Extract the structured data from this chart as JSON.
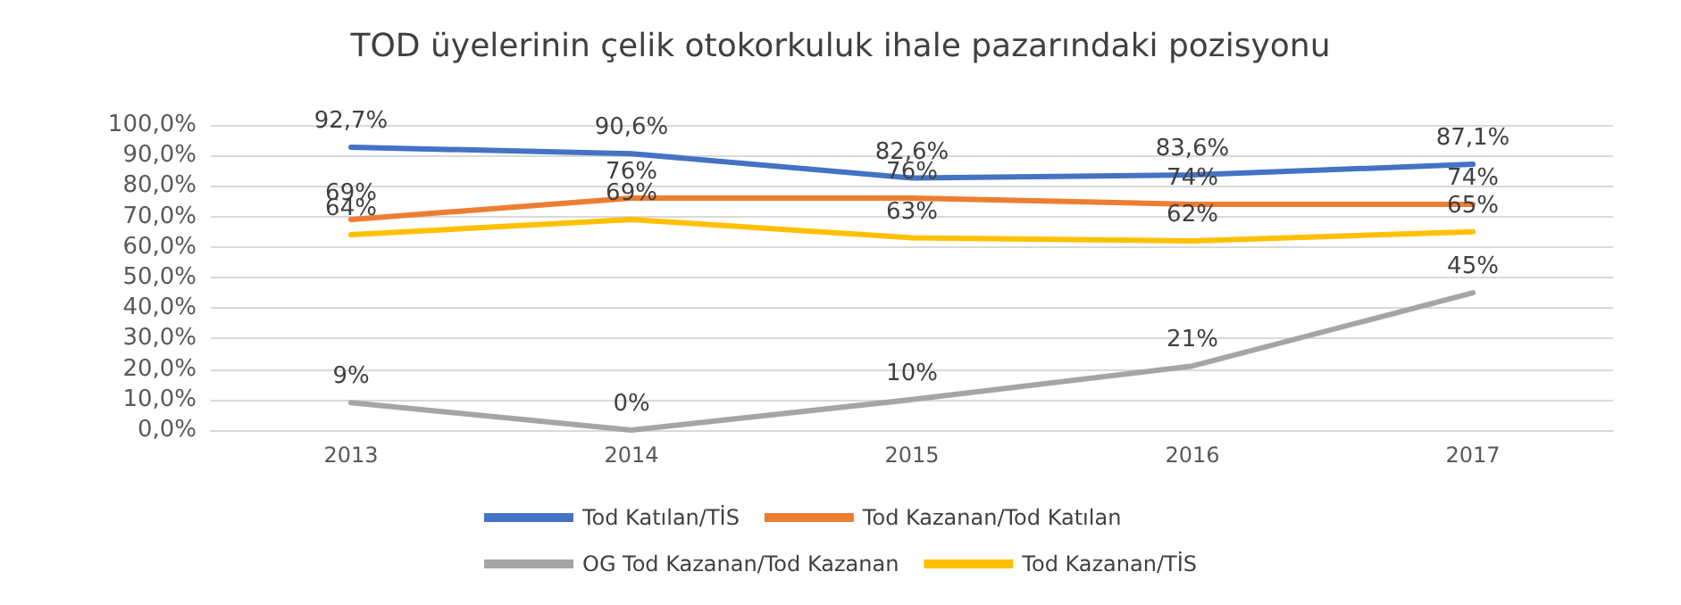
{
  "chart_data": {
    "type": "line",
    "title": "TOD üyelerinin çelik otokorkuluk ihale pazarındaki pozisyonu",
    "categories": [
      "2013",
      "2014",
      "2015",
      "2016",
      "2017"
    ],
    "series": [
      {
        "name": "Tod Katılan/TİS",
        "color": "#4472c4",
        "values": [
          92.7,
          90.6,
          82.6,
          83.6,
          87.1
        ],
        "value_labels": [
          "92,7%",
          "90,6%",
          "82,6%",
          "83,6%",
          "87,1%"
        ]
      },
      {
        "name": "Tod Kazanan/Tod Katılan",
        "color": "#ed7d31",
        "values": [
          69,
          76,
          76,
          74,
          74
        ],
        "value_labels": [
          "69%",
          "76%",
          "76%",
          "74%",
          "74%"
        ]
      },
      {
        "name": "OG Tod Kazanan/Tod Kazanan",
        "color": "#a5a5a5",
        "values": [
          9,
          0,
          10,
          21,
          45
        ],
        "value_labels": [
          "9%",
          "0%",
          "10%",
          "21%",
          "45%"
        ]
      },
      {
        "name": "Tod Kazanan/TİS",
        "color": "#ffc000",
        "values": [
          64,
          69,
          63,
          62,
          65
        ],
        "value_labels": [
          "64%",
          "69%",
          "63%",
          "62%",
          "65%"
        ]
      }
    ],
    "ylim": [
      0,
      100
    ],
    "yticks": [
      {
        "value": 0,
        "label": "0,0%"
      },
      {
        "value": 10,
        "label": "10,0%"
      },
      {
        "value": 20,
        "label": "20,0%"
      },
      {
        "value": 30,
        "label": "30,0%"
      },
      {
        "value": 40,
        "label": "40,0%"
      },
      {
        "value": 50,
        "label": "50,0%"
      },
      {
        "value": 60,
        "label": "60,0%"
      },
      {
        "value": 70,
        "label": "70,0%"
      },
      {
        "value": 80,
        "label": "80,0%"
      },
      {
        "value": 90,
        "label": "90,0%"
      },
      {
        "value": 100,
        "label": "100,0%"
      }
    ],
    "grid": "y",
    "legend": "bottom",
    "marker": "none",
    "line_style": "solid"
  }
}
